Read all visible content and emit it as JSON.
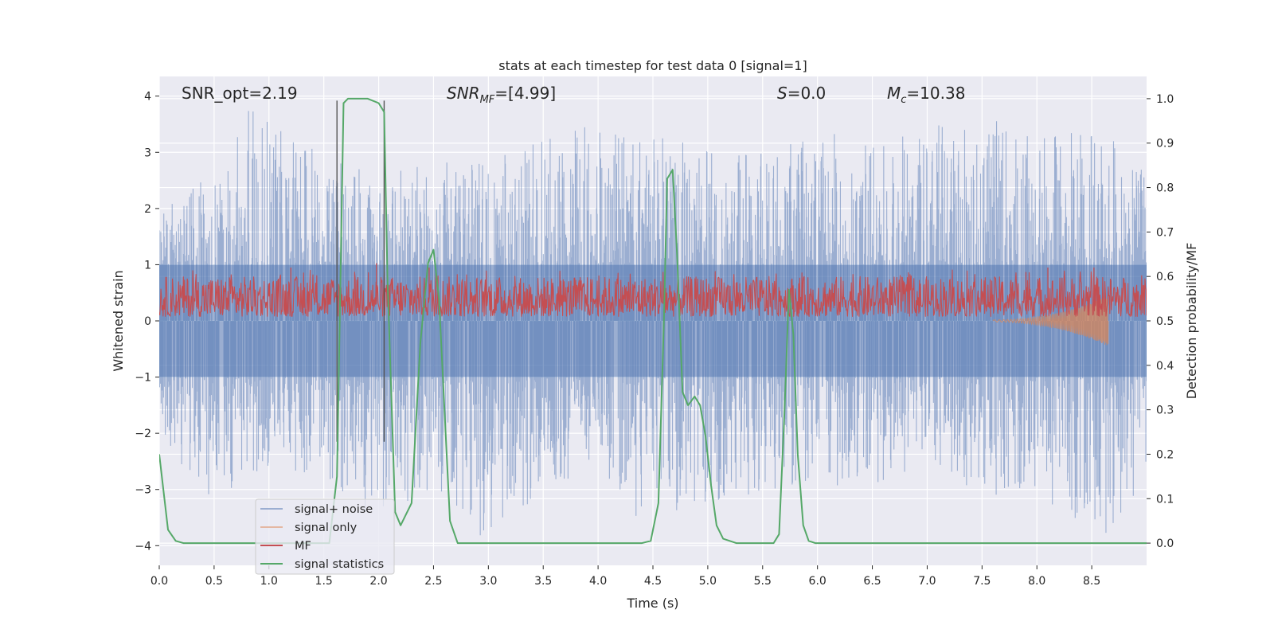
{
  "chart_data": {
    "type": "line",
    "title": "stats at each timestep for test data 0 [signal=1]",
    "xlabel": "Time (s)",
    "ylabel_left": "Whitened strain",
    "ylabel_right": "Detection probability/MF",
    "xlim": [
      0,
      9
    ],
    "ylim_left": [
      -4.35,
      4.35
    ],
    "ylim_right": [
      -0.05,
      1.05
    ],
    "x_ticks": [
      0.0,
      0.5,
      1.0,
      1.5,
      2.0,
      2.5,
      3.0,
      3.5,
      4.0,
      4.5,
      5.0,
      5.5,
      6.0,
      6.5,
      7.0,
      7.5,
      8.0,
      8.5
    ],
    "y_ticks_left": [
      -4,
      -3,
      -2,
      -1,
      0,
      1,
      2,
      3,
      4
    ],
    "y_ticks_right": [
      0.0,
      0.1,
      0.2,
      0.3,
      0.4,
      0.5,
      0.6,
      0.7,
      0.8,
      0.9,
      1.0
    ],
    "grid": true,
    "legend_placement": "lower-left",
    "annotations": {
      "snr_opt": "SNR_opt=2.19",
      "snr_mf_main": "SNR",
      "snr_mf_sub": "MF",
      "snr_mf_rest": "=[4.99]",
      "s_main": "S",
      "s_rest": "=0.0",
      "mc_main": "M",
      "mc_sub": "c",
      "mc_rest": "=10.38"
    },
    "vertical_lines_x": [
      1.62,
      2.05
    ],
    "series": [
      {
        "name": "signal+ noise",
        "color": "#4c72b0",
        "axis": "left",
        "style": "dense noise band",
        "envelope_upper": [
          [
            0.0,
            1.9
          ],
          [
            0.5,
            2.7
          ],
          [
            0.83,
            3.9
          ],
          [
            1.2,
            3.4
          ],
          [
            1.5,
            2.9
          ],
          [
            2.0,
            2.6
          ],
          [
            2.5,
            2.8
          ],
          [
            3.0,
            2.9
          ],
          [
            3.5,
            3.2
          ],
          [
            3.8,
            3.5
          ],
          [
            4.2,
            3.3
          ],
          [
            4.5,
            3.3
          ],
          [
            5.0,
            3.1
          ],
          [
            5.5,
            3.0
          ],
          [
            6.0,
            3.4
          ],
          [
            6.5,
            3.2
          ],
          [
            7.0,
            3.5
          ],
          [
            7.5,
            3.7
          ],
          [
            8.0,
            3.2
          ],
          [
            8.5,
            3.6
          ],
          [
            9.0,
            2.6
          ]
        ],
        "envelope_lower": [
          [
            0.0,
            -2.2
          ],
          [
            0.5,
            -3.2
          ],
          [
            1.0,
            -2.6
          ],
          [
            1.5,
            -2.8
          ],
          [
            2.0,
            -3.6
          ],
          [
            2.5,
            -3.0
          ],
          [
            2.85,
            -4.0
          ],
          [
            3.5,
            -3.1
          ],
          [
            4.0,
            -2.5
          ],
          [
            4.4,
            -3.7
          ],
          [
            5.0,
            -3.4
          ],
          [
            5.5,
            -3.0
          ],
          [
            6.0,
            -3.0
          ],
          [
            6.5,
            -2.9
          ],
          [
            7.0,
            -2.6
          ],
          [
            7.5,
            -3.1
          ],
          [
            8.0,
            -3.1
          ],
          [
            8.4,
            -3.6
          ],
          [
            8.6,
            -3.9
          ],
          [
            9.0,
            -2.9
          ]
        ]
      },
      {
        "name": "signal only",
        "color": "#dd8452",
        "axis": "left",
        "style": "chirp",
        "x_range": [
          7.6,
          8.65
        ],
        "amplitude_start": 0.02,
        "amplitude_end": 0.45
      },
      {
        "name": "MF",
        "color": "#c44e52",
        "axis": "right",
        "style": "noisy band",
        "baseline": 0.55,
        "band_low": 0.51,
        "band_high": 0.6,
        "spikes": [
          [
            1.2,
            0.62
          ],
          [
            1.98,
            0.63
          ],
          [
            2.46,
            0.62
          ],
          [
            7.9,
            0.61
          ],
          [
            8.1,
            0.62
          ],
          [
            8.52,
            0.62
          ]
        ]
      },
      {
        "name": "signal statistics",
        "color": "#55a868",
        "axis": "right",
        "style": "line",
        "x": [
          0.0,
          0.08,
          0.15,
          0.22,
          0.3,
          1.55,
          1.62,
          1.68,
          1.72,
          1.9,
          2.0,
          2.05,
          2.08,
          2.15,
          2.2,
          2.3,
          2.38,
          2.45,
          2.5,
          2.55,
          2.6,
          2.65,
          2.72,
          2.8,
          4.4,
          4.48,
          4.55,
          4.6,
          4.63,
          4.68,
          4.72,
          4.77,
          4.82,
          4.88,
          4.93,
          4.98,
          5.03,
          5.08,
          5.14,
          5.2,
          5.26,
          5.32,
          5.4,
          5.6,
          5.65,
          5.7,
          5.74,
          5.78,
          5.82,
          5.87,
          5.92,
          5.98,
          9.0
        ],
        "y": [
          0.2,
          0.03,
          0.005,
          0.0,
          0.0,
          0.0,
          0.15,
          0.99,
          1.0,
          1.0,
          0.99,
          0.97,
          0.6,
          0.07,
          0.04,
          0.09,
          0.45,
          0.63,
          0.66,
          0.55,
          0.3,
          0.05,
          0.0,
          0.0,
          0.0,
          0.005,
          0.09,
          0.5,
          0.82,
          0.84,
          0.65,
          0.34,
          0.31,
          0.33,
          0.31,
          0.24,
          0.13,
          0.04,
          0.01,
          0.005,
          0.0,
          0.0,
          0.0,
          0.0,
          0.02,
          0.3,
          0.57,
          0.47,
          0.2,
          0.04,
          0.005,
          0.0,
          0.0
        ]
      }
    ]
  }
}
